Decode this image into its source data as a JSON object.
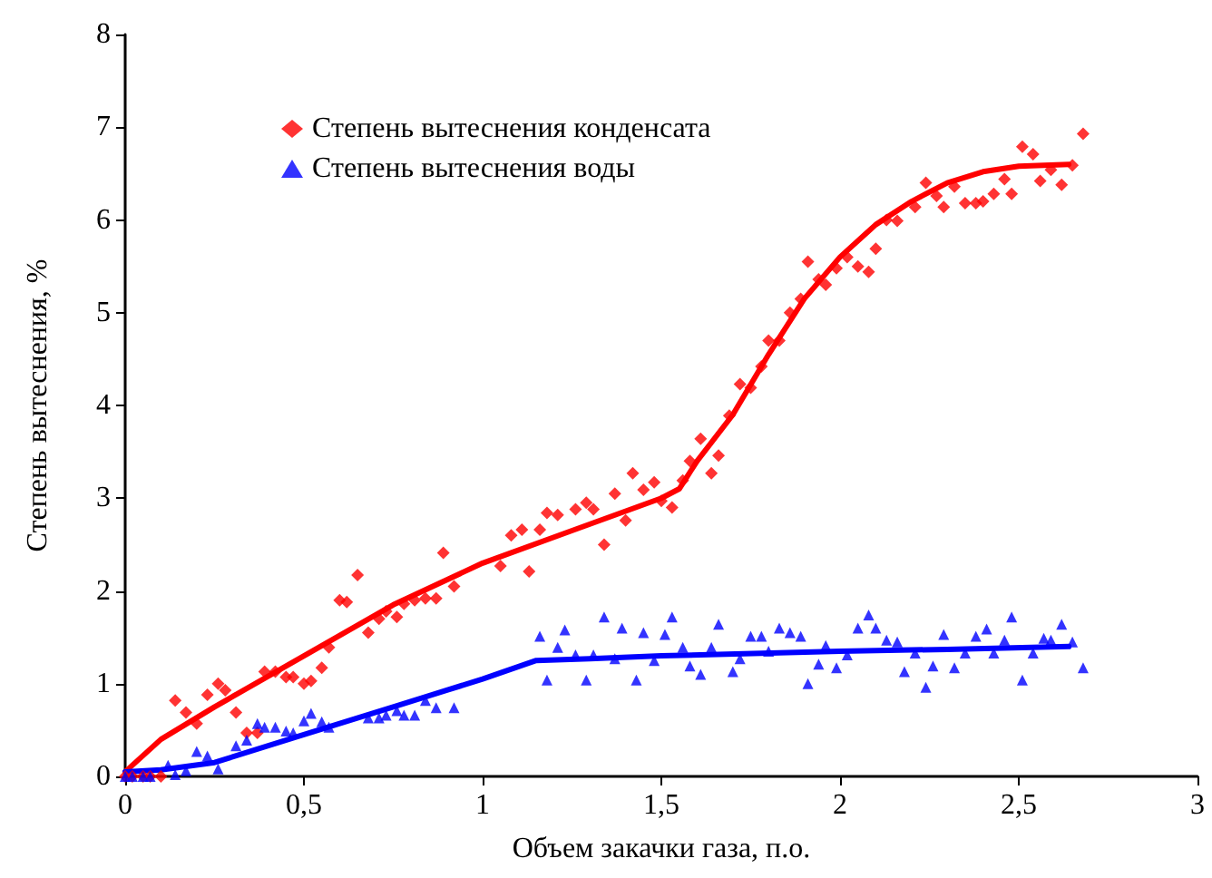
{
  "chart_data": {
    "type": "scatter",
    "xlabel": "Объем закачки газа, п.о.",
    "ylabel": "Степень вытеснения, %",
    "xlim": [
      0,
      3
    ],
    "ylim": [
      0,
      8
    ],
    "xticks": [
      0,
      {
        "value": 0.5,
        "label": "0,5"
      },
      1,
      {
        "value": 1.5,
        "label": "1,5"
      },
      2,
      {
        "value": 2.5,
        "label": "2,5"
      },
      3
    ],
    "yticks": [
      0,
      1,
      2,
      3,
      4,
      5,
      6,
      7,
      8
    ],
    "grid": false,
    "legend": "top left",
    "series": [
      {
        "name": "Степень вытеснения конденсата",
        "color": "#ff0000",
        "marker": "diamond",
        "x": [
          0,
          0.02,
          0.05,
          0.07,
          0.1,
          0.14,
          0.17,
          0.2,
          0.23,
          0.26,
          0.28,
          0.31,
          0.34,
          0.37,
          0.39,
          0.42,
          0.45,
          0.47,
          0.5,
          0.52,
          0.55,
          0.57,
          0.6,
          0.62,
          0.65,
          0.68,
          0.71,
          0.73,
          0.76,
          0.78,
          0.81,
          0.84,
          0.87,
          0.89,
          0.92,
          1.05,
          1.08,
          1.11,
          1.13,
          1.16,
          1.18,
          1.21,
          1.26,
          1.29,
          1.31,
          1.34,
          1.37,
          1.4,
          1.42,
          1.45,
          1.48,
          1.5,
          1.53,
          1.56,
          1.58,
          1.61,
          1.64,
          1.66,
          1.69,
          1.72,
          1.75,
          1.78,
          1.8,
          1.83,
          1.86,
          1.89,
          1.91,
          1.94,
          1.96,
          1.99,
          2.02,
          2.05,
          2.08,
          2.1,
          2.13,
          2.16,
          2.21,
          2.24,
          2.27,
          2.29,
          2.32,
          2.35,
          2.38,
          2.4,
          2.43,
          2.46,
          2.48,
          2.51,
          2.54,
          2.56,
          2.59,
          2.62,
          2.65,
          2.68
        ],
        "values": [
          0,
          0,
          0,
          0,
          0,
          0.82,
          0.69,
          0.57,
          0.88,
          1.0,
          0.93,
          0.69,
          0.47,
          0.47,
          1.13,
          1.13,
          1.07,
          1.07,
          1.0,
          1.03,
          1.17,
          1.39,
          1.9,
          1.88,
          2.17,
          1.55,
          1.7,
          1.78,
          1.72,
          1.86,
          1.9,
          1.92,
          1.92,
          2.41,
          2.05,
          2.27,
          2.6,
          2.66,
          2.21,
          2.66,
          2.84,
          2.82,
          2.88,
          2.95,
          2.88,
          2.5,
          3.05,
          2.76,
          3.27,
          3.09,
          3.17,
          2.97,
          2.9,
          3.19,
          3.4,
          3.64,
          3.27,
          3.46,
          3.89,
          4.23,
          4.19,
          4.42,
          4.7,
          4.7,
          5.0,
          5.15,
          5.55,
          5.36,
          5.3,
          5.48,
          5.6,
          5.5,
          5.44,
          5.69,
          6.0,
          5.99,
          6.14,
          6.4,
          6.26,
          6.14,
          6.36,
          6.18,
          6.18,
          6.2,
          6.28,
          6.44,
          6.28,
          6.79,
          6.71,
          6.42,
          6.54,
          6.38,
          6.59,
          6.93
        ]
      },
      {
        "name": "Степень вытеснения воды",
        "color": "#0000ff",
        "marker": "triangle",
        "x": [
          0,
          0.02,
          0.05,
          0.07,
          0.12,
          0.14,
          0.17,
          0.2,
          0.23,
          0.26,
          0.31,
          0.34,
          0.37,
          0.39,
          0.42,
          0.45,
          0.47,
          0.5,
          0.52,
          0.55,
          0.57,
          0.68,
          0.71,
          0.73,
          0.76,
          0.78,
          0.81,
          0.84,
          0.87,
          0.92,
          1.16,
          1.18,
          1.21,
          1.23,
          1.26,
          1.29,
          1.31,
          1.34,
          1.37,
          1.39,
          1.43,
          1.45,
          1.48,
          1.51,
          1.53,
          1.56,
          1.58,
          1.61,
          1.64,
          1.66,
          1.7,
          1.72,
          1.75,
          1.78,
          1.8,
          1.83,
          1.86,
          1.89,
          1.91,
          1.94,
          1.96,
          1.99,
          2.02,
          2.05,
          2.08,
          2.1,
          2.13,
          2.16,
          2.18,
          2.21,
          2.24,
          2.26,
          2.29,
          2.32,
          2.35,
          2.38,
          2.41,
          2.43,
          2.46,
          2.48,
          2.51,
          2.54,
          2.57,
          2.59,
          2.62,
          2.65,
          2.68
        ],
        "values": [
          0,
          0,
          0,
          0,
          0.12,
          0.02,
          0.06,
          0.27,
          0.22,
          0.08,
          0.33,
          0.39,
          0.57,
          0.53,
          0.53,
          0.49,
          0.47,
          0.6,
          0.68,
          0.59,
          0.53,
          0.63,
          0.63,
          0.66,
          0.71,
          0.66,
          0.66,
          0.82,
          0.74,
          0.74,
          1.51,
          1.04,
          1.39,
          1.58,
          1.31,
          1.04,
          1.31,
          1.72,
          1.27,
          1.6,
          1.04,
          1.55,
          1.25,
          1.53,
          1.72,
          1.39,
          1.19,
          1.1,
          1.39,
          1.64,
          1.13,
          1.27,
          1.51,
          1.51,
          1.35,
          1.6,
          1.55,
          1.51,
          1.0,
          1.21,
          1.41,
          1.17,
          1.31,
          1.6,
          1.74,
          1.6,
          1.47,
          1.45,
          1.13,
          1.33,
          0.96,
          1.19,
          1.53,
          1.17,
          1.33,
          1.51,
          1.59,
          1.33,
          1.47,
          1.72,
          1.04,
          1.33,
          1.49,
          1.47,
          1.64,
          1.45,
          1.17
        ]
      },
      {
        "type": "line",
        "color": "#ff0000",
        "marker": "none",
        "x": [
          0,
          0.1,
          0.25,
          0.5,
          0.75,
          1,
          1.25,
          1.5,
          1.55,
          1.6,
          1.7,
          1.8,
          1.9,
          2,
          2.1,
          2.2,
          2.3,
          2.4,
          2.5,
          2.64
        ],
        "values": [
          0.05,
          0.4,
          0.75,
          1.3,
          1.85,
          2.3,
          2.65,
          3.0,
          3.1,
          3.4,
          3.9,
          4.55,
          5.15,
          5.6,
          5.95,
          6.2,
          6.4,
          6.52,
          6.58,
          6.6
        ]
      },
      {
        "type": "line",
        "color": "#0000ff",
        "marker": "none",
        "x": [
          0,
          0.1,
          0.25,
          0.5,
          0.75,
          1,
          1.15,
          1.3,
          1.5,
          2,
          2.3,
          2.64
        ],
        "values": [
          0.05,
          0.07,
          0.15,
          0.45,
          0.75,
          1.05,
          1.25,
          1.27,
          1.3,
          1.35,
          1.37,
          1.4
        ]
      }
    ]
  }
}
